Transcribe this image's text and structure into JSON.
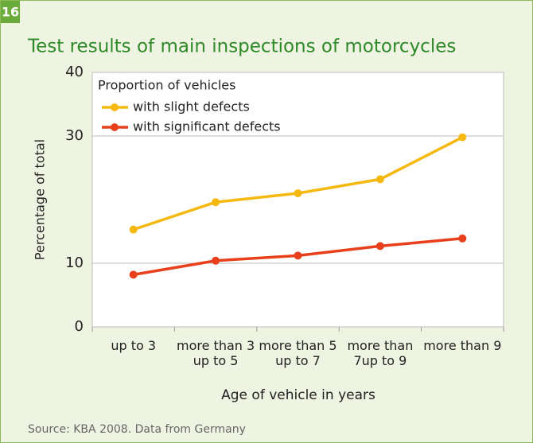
{
  "badge": "16",
  "chart_data": {
    "type": "line",
    "title": "Test results of main inspections of motorcycles",
    "legend_title": "Proportion of vehicles",
    "categories": [
      "up to 3",
      "more than 3 up to 5",
      "more than 5 up to 7",
      "more than 7up to 9",
      "more than 9"
    ],
    "series": [
      {
        "name": "with slight defects",
        "color": "#f5b80f",
        "values": [
          15.3,
          19.6,
          21.0,
          23.2,
          29.8
        ]
      },
      {
        "name": "with significant defects",
        "color": "#e8401c",
        "values": [
          8.2,
          10.4,
          11.2,
          12.7,
          13.9
        ]
      }
    ],
    "ylim": [
      0,
      40
    ],
    "yticks": [
      0,
      10,
      30,
      40
    ],
    "grid": true,
    "legend": "upper left",
    "ylabel": "Percentage of total",
    "xlabel": "Age of vehicle in years",
    "source": "Source: KBA 2008. Data from Germany"
  }
}
